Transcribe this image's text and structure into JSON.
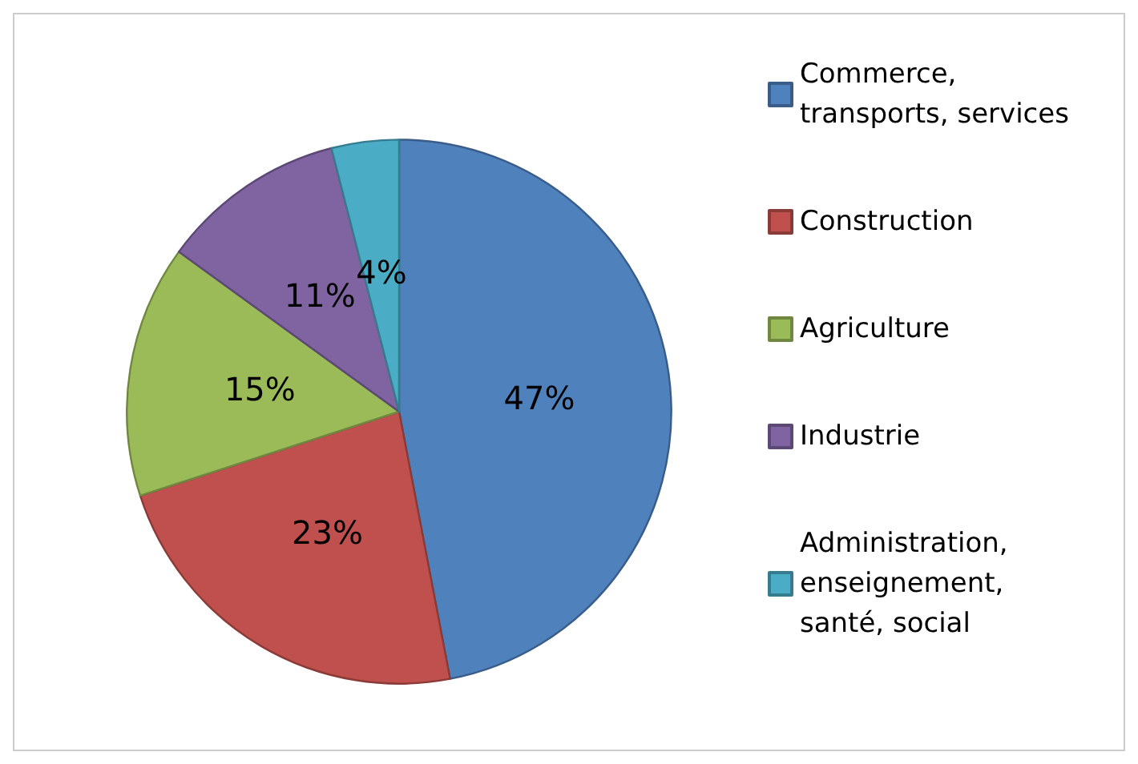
{
  "chart_data": {
    "type": "pie",
    "categories": [
      "Commerce, transports, services",
      "Construction",
      "Agriculture",
      "Industrie",
      "Administration, enseignement, santé, social"
    ],
    "values": [
      47,
      23,
      15,
      11,
      4
    ],
    "colors": [
      "#4f81bd",
      "#c0504d",
      "#9bbb59",
      "#8064a2",
      "#4bacc6"
    ],
    "value_labels": [
      "47%",
      "23%",
      "15%",
      "11%",
      "4%"
    ],
    "legend": "right"
  }
}
